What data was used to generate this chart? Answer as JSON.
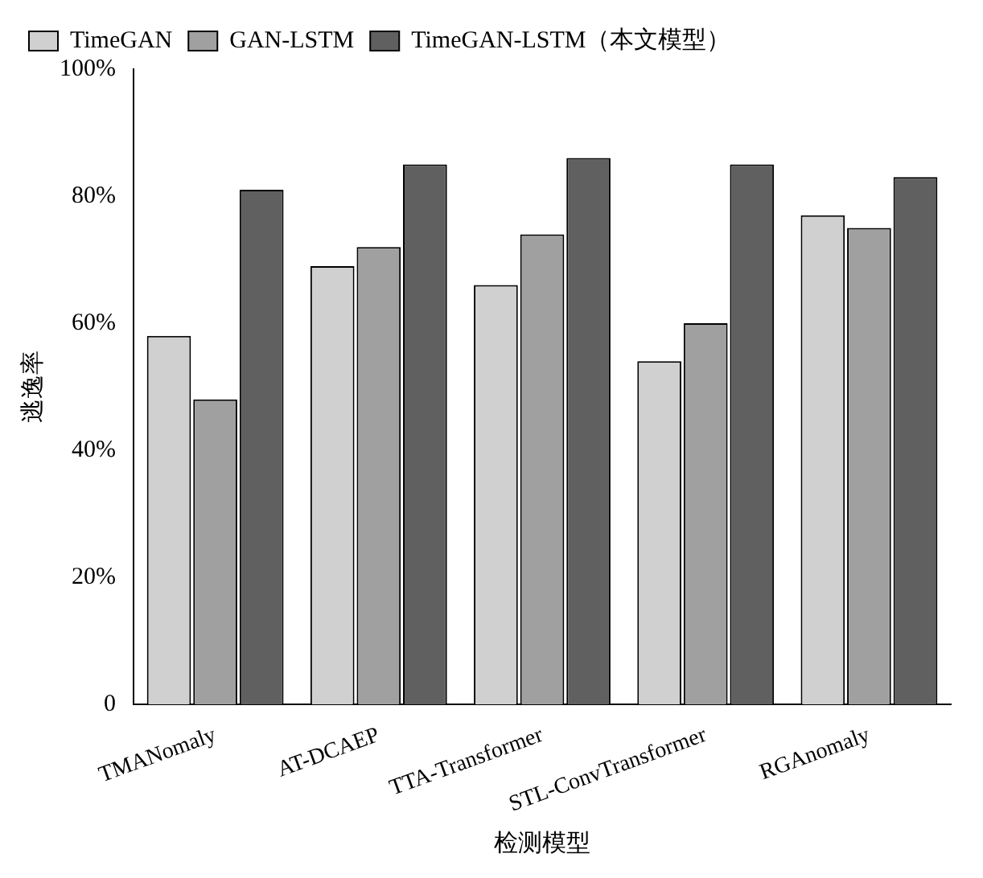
{
  "chart_data": {
    "type": "bar",
    "xlabel": "检测模型",
    "ylabel": "逃逸率",
    "categories": [
      "TMANomaly",
      "AT-DCAEP",
      "TTA-Transformer",
      "STL-ConvTransformer",
      "RGAnomaly"
    ],
    "series": [
      {
        "name": "TimeGAN",
        "color": "#d0d0d0",
        "values": [
          58,
          69,
          66,
          54,
          77
        ]
      },
      {
        "name": "GAN-LSTM",
        "color": "#a0a0a0",
        "values": [
          48,
          72,
          74,
          60,
          75
        ]
      },
      {
        "name": "TimeGAN-LSTM（本文模型）",
        "color": "#606060",
        "values": [
          81,
          85,
          86,
          85,
          83
        ]
      }
    ],
    "ylim": [
      0,
      100
    ],
    "yticks": [
      0,
      {
        "value": 20,
        "label": "20%"
      },
      {
        "value": 40,
        "label": "40%"
      },
      {
        "value": 60,
        "label": "60%"
      },
      {
        "value": 80,
        "label": "80%"
      },
      {
        "value": 100,
        "label": "100%"
      }
    ],
    "grid": false,
    "legend": "top left"
  }
}
